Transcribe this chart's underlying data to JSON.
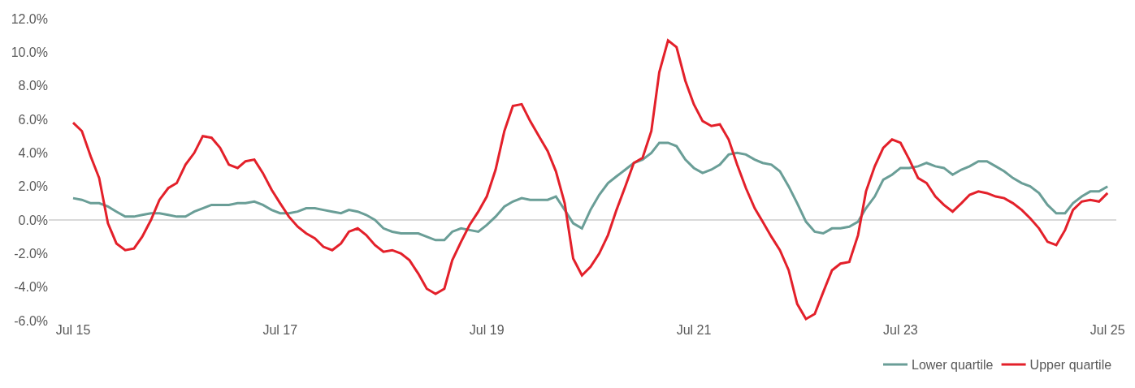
{
  "chart_data": {
    "type": "line",
    "x": [
      "2015-07",
      "2015-08",
      "2015-09",
      "2015-10",
      "2015-11",
      "2015-12",
      "2016-01",
      "2016-02",
      "2016-03",
      "2016-04",
      "2016-05",
      "2016-06",
      "2016-07",
      "2016-08",
      "2016-09",
      "2016-10",
      "2016-11",
      "2016-12",
      "2017-01",
      "2017-02",
      "2017-03",
      "2017-04",
      "2017-05",
      "2017-06",
      "2017-07",
      "2017-08",
      "2017-09",
      "2017-10",
      "2017-11",
      "2017-12",
      "2018-01",
      "2018-02",
      "2018-03",
      "2018-04",
      "2018-05",
      "2018-06",
      "2018-07",
      "2018-08",
      "2018-09",
      "2018-10",
      "2018-11",
      "2018-12",
      "2019-01",
      "2019-02",
      "2019-03",
      "2019-04",
      "2019-05",
      "2019-06",
      "2019-07",
      "2019-08",
      "2019-09",
      "2019-10",
      "2019-11",
      "2019-12",
      "2020-01",
      "2020-02",
      "2020-03",
      "2020-04",
      "2020-05",
      "2020-06",
      "2020-07",
      "2020-08",
      "2020-09",
      "2020-10",
      "2020-11",
      "2020-12",
      "2021-01",
      "2021-02",
      "2021-03",
      "2021-04",
      "2021-05",
      "2021-06",
      "2021-07",
      "2021-08",
      "2021-09",
      "2021-10",
      "2021-11",
      "2021-12",
      "2022-01",
      "2022-02",
      "2022-03",
      "2022-04",
      "2022-05",
      "2022-06",
      "2022-07",
      "2022-08",
      "2022-09",
      "2022-10",
      "2022-11",
      "2022-12",
      "2023-01",
      "2023-02",
      "2023-03",
      "2023-04",
      "2023-05",
      "2023-06",
      "2023-07",
      "2023-08",
      "2023-09",
      "2023-10",
      "2023-11",
      "2023-12",
      "2024-01",
      "2024-02",
      "2024-03",
      "2024-04",
      "2024-05",
      "2024-06",
      "2024-07",
      "2024-08",
      "2024-09",
      "2024-10",
      "2024-11",
      "2024-12",
      "2025-01",
      "2025-02",
      "2025-03",
      "2025-04",
      "2025-05",
      "2025-06",
      "2025-07"
    ],
    "series": [
      {
        "name": "Lower quartile",
        "color": "#6a9e97",
        "values": [
          1.3,
          1.2,
          1.0,
          1.0,
          0.8,
          0.5,
          0.2,
          0.2,
          0.3,
          0.4,
          0.4,
          0.3,
          0.2,
          0.2,
          0.5,
          0.7,
          0.9,
          0.9,
          0.9,
          1.0,
          1.0,
          1.1,
          0.9,
          0.6,
          0.4,
          0.4,
          0.5,
          0.7,
          0.7,
          0.6,
          0.5,
          0.4,
          0.6,
          0.5,
          0.3,
          0.0,
          -0.5,
          -0.7,
          -0.8,
          -0.8,
          -0.8,
          -1.0,
          -1.2,
          -1.2,
          -0.7,
          -0.5,
          -0.6,
          -0.7,
          -0.3,
          0.2,
          0.8,
          1.1,
          1.3,
          1.2,
          1.2,
          1.2,
          1.4,
          0.6,
          -0.2,
          -0.5,
          0.6,
          1.5,
          2.2,
          2.6,
          3.0,
          3.4,
          3.6,
          4.0,
          4.6,
          4.6,
          4.4,
          3.6,
          3.1,
          2.8,
          3.0,
          3.3,
          3.9,
          4.0,
          3.9,
          3.6,
          3.4,
          3.3,
          2.9,
          2.0,
          1.0,
          -0.1,
          -0.7,
          -0.8,
          -0.5,
          -0.5,
          -0.4,
          -0.1,
          0.7,
          1.4,
          2.4,
          2.7,
          3.1,
          3.1,
          3.2,
          3.4,
          3.2,
          3.1,
          2.7,
          3.0,
          3.2,
          3.5,
          3.5,
          3.2,
          2.9,
          2.5,
          2.2,
          2.0,
          1.6,
          0.9,
          0.4,
          0.4,
          1.0,
          1.4,
          1.7,
          1.7,
          2.0
        ]
      },
      {
        "name": "Upper quartile",
        "color": "#e3202a",
        "values": [
          5.8,
          5.3,
          3.8,
          2.5,
          -0.2,
          -1.4,
          -1.8,
          -1.7,
          -1.0,
          0.0,
          1.2,
          1.9,
          2.2,
          3.3,
          4.0,
          5.0,
          4.9,
          4.3,
          3.3,
          3.1,
          3.5,
          3.6,
          2.8,
          1.8,
          1.0,
          0.2,
          -0.4,
          -0.8,
          -1.1,
          -1.6,
          -1.8,
          -1.4,
          -0.7,
          -0.5,
          -0.9,
          -1.5,
          -1.9,
          -1.8,
          -2.0,
          -2.4,
          -3.2,
          -4.1,
          -4.4,
          -4.1,
          -2.4,
          -1.3,
          -0.3,
          0.5,
          1.4,
          3.0,
          5.3,
          6.8,
          6.9,
          5.9,
          5.0,
          4.1,
          2.9,
          1.0,
          -2.3,
          -3.3,
          -2.8,
          -2.0,
          -0.9,
          0.6,
          2.0,
          3.4,
          3.7,
          5.3,
          8.8,
          10.7,
          10.3,
          8.3,
          6.9,
          5.9,
          5.6,
          5.7,
          4.8,
          3.3,
          1.9,
          0.7,
          -0.1,
          -1.0,
          -1.8,
          -3.0,
          -5.0,
          -5.9,
          -5.6,
          -4.3,
          -3.0,
          -2.6,
          -2.5,
          -0.9,
          1.7,
          3.2,
          4.3,
          4.8,
          4.6,
          3.6,
          2.5,
          2.2,
          1.4,
          0.9,
          0.5,
          1.0,
          1.5,
          1.7,
          1.6,
          1.4,
          1.3,
          1.0,
          0.6,
          0.1,
          -0.5,
          -1.3,
          -1.5,
          -0.6,
          0.6,
          1.1,
          1.2,
          1.1,
          1.6
        ]
      }
    ],
    "xlim": [
      "2015-04-06",
      "2025-08-01"
    ],
    "xticks": [
      {
        "value": "2015-07",
        "label": "Jul 15"
      },
      {
        "value": "2017-07",
        "label": "Jul 17"
      },
      {
        "value": "2019-07",
        "label": "Jul 19"
      },
      {
        "value": "2021-07",
        "label": "Jul 21"
      },
      {
        "value": "2023-07",
        "label": "Jul 23"
      },
      {
        "value": "2025-07",
        "label": "Jul 25"
      }
    ],
    "ylim": [
      -6,
      12
    ],
    "yticks": [
      {
        "value": -6,
        "label": "-6.0%"
      },
      {
        "value": -4,
        "label": "-4.0%"
      },
      {
        "value": -2,
        "label": "-2.0%"
      },
      {
        "value": 0,
        "label": "0.0%"
      },
      {
        "value": 2,
        "label": "2.0%"
      },
      {
        "value": 4,
        "label": "4.0%"
      },
      {
        "value": 6,
        "label": "6.0%"
      },
      {
        "value": 8,
        "label": "8.0%"
      },
      {
        "value": 10,
        "label": "10.0%"
      },
      {
        "value": 12,
        "label": "12.0%"
      }
    ],
    "ref_lines": [
      {
        "axis": "y",
        "value": 0,
        "color": "#d9d9d9"
      }
    ],
    "grid": false,
    "legend": "bottom right",
    "marker": "none",
    "line_style": "solid"
  }
}
